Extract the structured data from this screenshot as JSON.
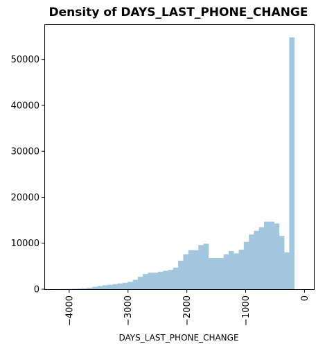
{
  "chart_data": {
    "type": "bar",
    "title": "Density of DAYS_LAST_PHONE_CHANGE",
    "xlabel": "DAYS_LAST_PHONE_CHANGE",
    "ylabel": "",
    "xlim": [
      -4410,
      160
    ],
    "ylim": [
      0,
      57500
    ],
    "x_ticks": [
      -4000,
      -3000,
      -2000,
      -1000,
      0
    ],
    "x_tick_labels": [
      "−4000",
      "−3000",
      "−2000",
      "−1000",
      "0"
    ],
    "y_ticks": [
      0,
      10000,
      20000,
      30000,
      40000,
      50000
    ],
    "y_tick_labels": [
      "0",
      "10000",
      "20000",
      "30000",
      "40000",
      "50000"
    ],
    "grid": false,
    "bar_color": "#a3c6df",
    "bin_width": 85.8,
    "bin_start": -4292,
    "values": [
      10,
      20,
      40,
      60,
      100,
      150,
      200,
      300,
      500,
      700,
      850,
      950,
      1100,
      1250,
      1400,
      1600,
      2050,
      2700,
      3300,
      3600,
      3600,
      3800,
      4000,
      4200,
      4700,
      6200,
      7600,
      8500,
      8500,
      9600,
      9900,
      6800,
      6800,
      6800,
      7600,
      8300,
      7800,
      8600,
      10300,
      11900,
      12700,
      13500,
      14700,
      14700,
      14300,
      11600,
      8000,
      54800
    ]
  }
}
